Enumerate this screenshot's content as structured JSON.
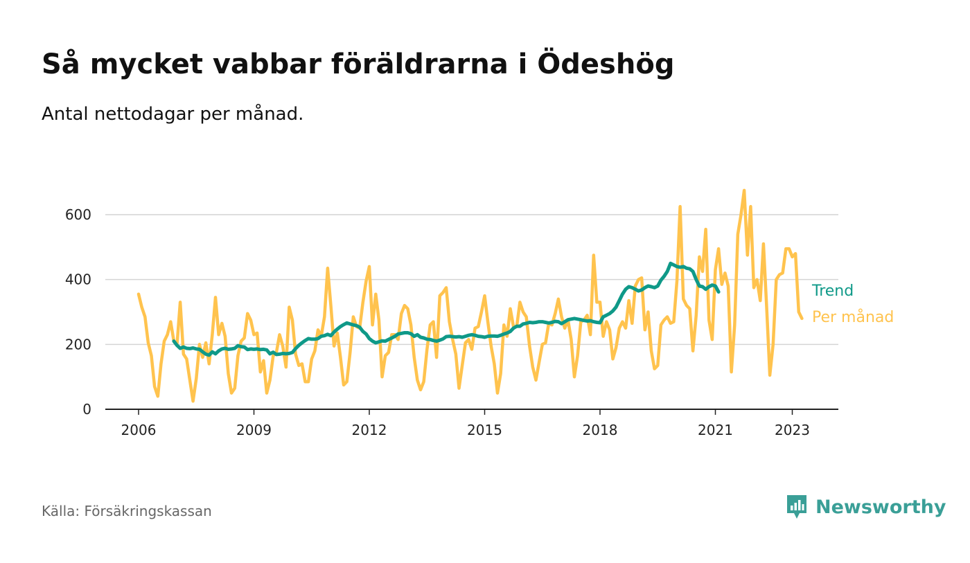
{
  "title": "Så mycket vabbar föräldrarna i Ödeshög",
  "subtitle": "Antal nettodagar per månad.",
  "source": "Källa: Försäkringskassan",
  "brand": {
    "name": "Newsworthy",
    "icon": "bar-chart-speech-bubble-icon",
    "color": "#3a9f97"
  },
  "chart_data": {
    "type": "line",
    "x_start": "2006-01",
    "x_end": "2023-05",
    "xticks": [
      "2006",
      "2009",
      "2012",
      "2015",
      "2018",
      "2021",
      "2023"
    ],
    "yticks": [
      0,
      200,
      400,
      600
    ],
    "ylim": [
      0,
      690
    ],
    "grid": true,
    "legend": "direct-labels-right",
    "series": [
      {
        "name": "Per månad",
        "color": "#ffc34e",
        "start": "2006-01",
        "values": [
          355,
          315,
          285,
          205,
          165,
          70,
          40,
          140,
          210,
          230,
          270,
          210,
          200,
          330,
          170,
          155,
          90,
          25,
          95,
          200,
          160,
          205,
          140,
          230,
          345,
          230,
          265,
          225,
          110,
          50,
          65,
          165,
          210,
          220,
          295,
          275,
          230,
          235,
          115,
          150,
          50,
          90,
          165,
          175,
          230,
          195,
          130,
          315,
          275,
          170,
          135,
          140,
          85,
          85,
          155,
          180,
          245,
          225,
          285,
          435,
          320,
          195,
          235,
          160,
          75,
          85,
          175,
          285,
          255,
          250,
          330,
          395,
          440,
          260,
          355,
          275,
          100,
          165,
          175,
          230,
          230,
          215,
          295,
          320,
          310,
          260,
          160,
          90,
          60,
          85,
          185,
          260,
          270,
          160,
          350,
          360,
          375,
          270,
          215,
          170,
          65,
          135,
          205,
          215,
          185,
          250,
          255,
          300,
          350,
          270,
          195,
          140,
          50,
          110,
          260,
          225,
          310,
          255,
          255,
          330,
          300,
          285,
          195,
          130,
          90,
          145,
          200,
          205,
          265,
          260,
          295,
          340,
          285,
          250,
          275,
          215,
          100,
          165,
          270,
          275,
          290,
          230,
          475,
          330,
          330,
          225,
          270,
          245,
          155,
          190,
          250,
          270,
          250,
          335,
          265,
          380,
          400,
          405,
          245,
          300,
          180,
          125,
          135,
          260,
          275,
          285,
          265,
          270,
          395,
          625,
          340,
          320,
          310,
          180,
          290,
          470,
          425,
          555,
          275,
          215,
          430,
          495,
          385,
          420,
          380,
          115,
          260,
          540,
          600,
          675,
          475,
          625,
          375,
          400,
          335,
          510,
          315,
          105,
          200,
          400,
          415,
          420,
          495,
          495,
          470,
          480,
          300,
          280
        ]
      },
      {
        "name": "Trend",
        "color": "#0f9988",
        "start": "2006-12",
        "values": [
          210,
          197,
          188,
          192,
          188,
          187,
          189,
          186,
          185,
          177,
          170,
          167,
          177,
          171,
          180,
          186,
          188,
          185,
          186,
          188,
          196,
          193,
          192,
          184,
          186,
          185,
          186,
          184,
          185,
          183,
          171,
          176,
          169,
          170,
          172,
          171,
          172,
          175,
          187,
          197,
          205,
          212,
          218,
          216,
          216,
          218,
          225,
          227,
          231,
          227,
          238,
          247,
          255,
          261,
          266,
          263,
          260,
          258,
          253,
          240,
          232,
          218,
          210,
          205,
          208,
          211,
          210,
          215,
          220,
          225,
          232,
          234,
          236,
          236,
          233,
          225,
          230,
          222,
          220,
          216,
          215,
          212,
          210,
          213,
          217,
          224,
          225,
          224,
          223,
          224,
          222,
          225,
          228,
          230,
          228,
          225,
          224,
          222,
          225,
          226,
          226,
          225,
          228,
          232,
          235,
          240,
          250,
          256,
          256,
          263,
          265,
          268,
          267,
          268,
          270,
          270,
          268,
          266,
          268,
          271,
          270,
          264,
          270,
          276,
          278,
          280,
          278,
          276,
          274,
          272,
          273,
          270,
          268,
          267,
          285,
          290,
          295,
          303,
          315,
          335,
          355,
          370,
          378,
          375,
          370,
          365,
          368,
          375,
          380,
          378,
          375,
          380,
          398,
          410,
          425,
          450,
          445,
          440,
          438,
          440,
          435,
          433,
          425,
          400,
          380,
          378,
          370,
          378,
          383,
          380,
          362
        ]
      }
    ]
  }
}
